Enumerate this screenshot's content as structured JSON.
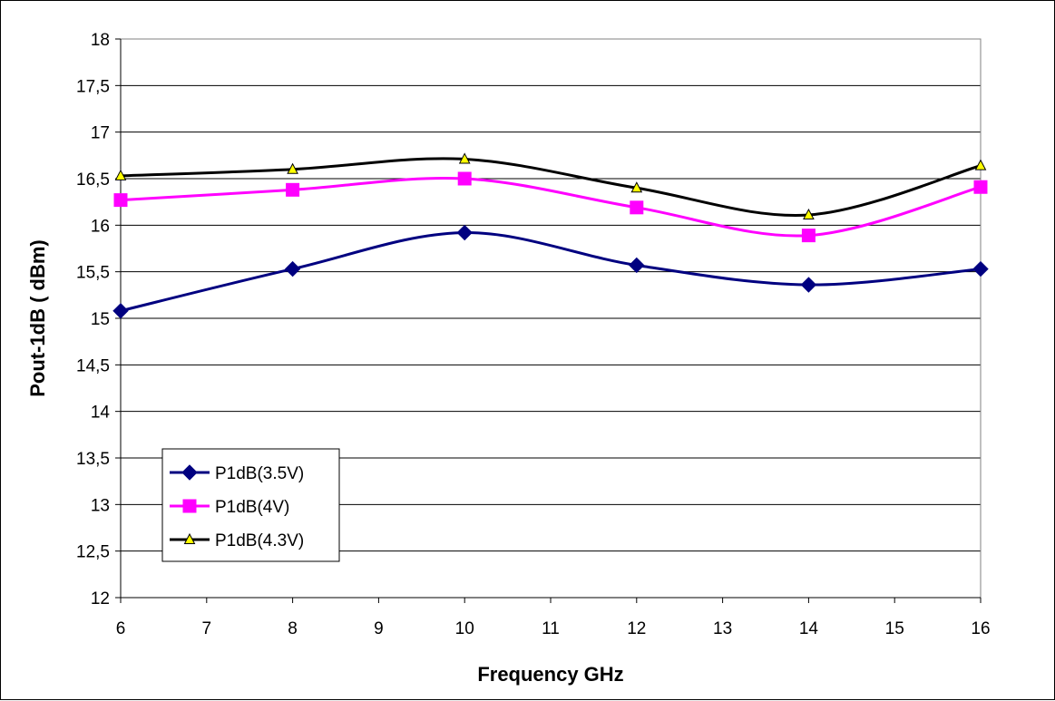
{
  "chart_data": {
    "type": "line",
    "title": "",
    "xlabel": "Frequency GHz",
    "ylabel": "Pout-1dB ( dBm)",
    "xlim": [
      6,
      16
    ],
    "ylim": [
      12,
      18
    ],
    "x_ticks": [
      "6",
      "7",
      "8",
      "9",
      "10",
      "11",
      "12",
      "13",
      "14",
      "15",
      "16"
    ],
    "y_ticks": [
      "12",
      "12,5",
      "13",
      "13,5",
      "14",
      "14,5",
      "15",
      "15,5",
      "16",
      "16,5",
      "17",
      "17,5",
      "18"
    ],
    "grid": "horizontal",
    "legend_position": "bottom-left",
    "x": [
      6,
      8,
      10,
      12,
      14,
      16
    ],
    "series": [
      {
        "name": "P1dB(3.5V)",
        "color": "#000080",
        "marker": "diamond",
        "values": [
          15.08,
          15.53,
          15.92,
          15.57,
          15.36,
          15.53
        ]
      },
      {
        "name": "P1dB(4V)",
        "color": "#ff00ff",
        "marker": "square",
        "values": [
          16.27,
          16.38,
          16.5,
          16.19,
          15.89,
          16.41
        ]
      },
      {
        "name": "P1dB(4.3V)",
        "color": "#000000",
        "marker": "triangle",
        "marker_fill": "#ffff00",
        "values": [
          16.53,
          16.6,
          16.71,
          16.4,
          16.11,
          16.64
        ]
      }
    ]
  }
}
